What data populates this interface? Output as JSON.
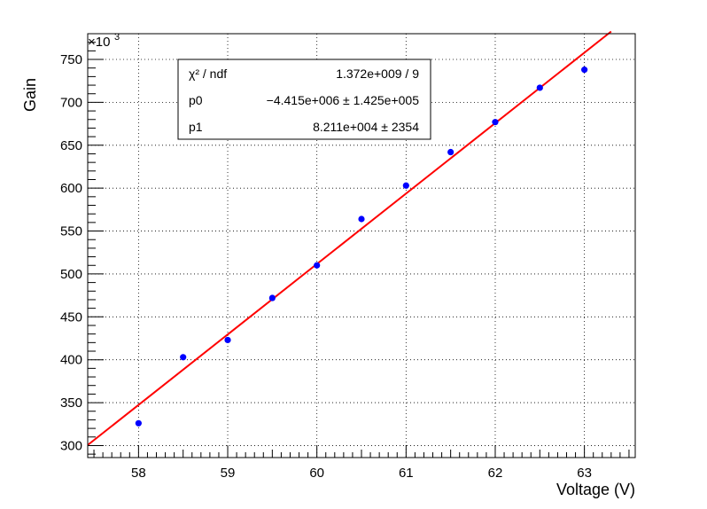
{
  "chart_data": {
    "type": "scatter",
    "xlabel": "Voltage (V)",
    "ylabel": "Gain",
    "xlim": [
      57.43,
      63.57
    ],
    "ylim": [
      286,
      780
    ],
    "y_exponent_label": "×10",
    "y_exponent_power": "3",
    "y_scale_factor": 1000,
    "x_ticks": [
      "58",
      "59",
      "60",
      "61",
      "62",
      "63"
    ],
    "y_ticks": [
      "300",
      "350",
      "400",
      "450",
      "500",
      "550",
      "600",
      "650",
      "700",
      "750"
    ],
    "grid": true,
    "points": {
      "x": [
        58,
        58.5,
        59,
        59.5,
        60,
        60.5,
        61,
        61.5,
        62,
        62.5,
        63
      ],
      "y": [
        326,
        403,
        423,
        472,
        510,
        564,
        603,
        642,
        677,
        717,
        738
      ]
    },
    "fit": {
      "p0": -4415000,
      "p1": 82110,
      "x_range": [
        57.43,
        63.3
      ]
    },
    "colors": {
      "points": "#0000ff",
      "fit": "#ff0000",
      "grid": "#000000"
    },
    "stats_box": {
      "rows": [
        {
          "name": "χ² / ndf",
          "value": "1.372e+009 / 9"
        },
        {
          "name": "p0",
          "value": "−4.415e+006 ± 1.425e+005"
        },
        {
          "name": "p1",
          "value": "8.211e+004 ±  2354"
        }
      ]
    }
  }
}
